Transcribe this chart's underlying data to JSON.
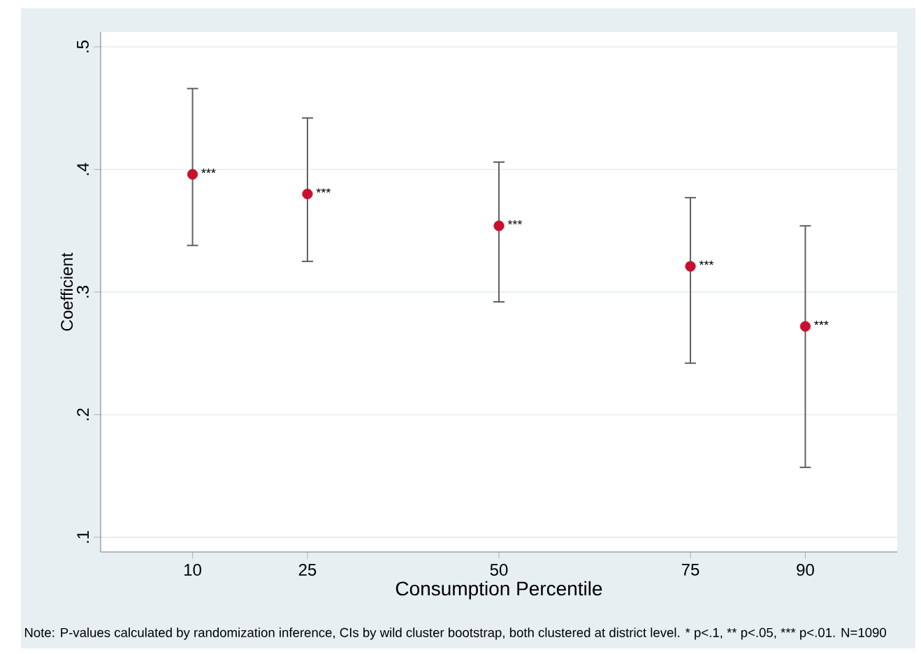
{
  "chart_data": {
    "type": "scatter",
    "xlabel": "Consumption Percentile",
    "ylabel": "Coefficient",
    "x": [
      10,
      25,
      50,
      75,
      90
    ],
    "series": [
      {
        "color": "#c8102e",
        "values": [
          0.396,
          0.38,
          0.354,
          0.321,
          0.272
        ],
        "errors": [
          [
            0.338,
            0.466
          ],
          [
            0.325,
            0.442
          ],
          [
            0.292,
            0.406
          ],
          [
            0.242,
            0.377
          ],
          [
            0.157,
            0.354
          ]
        ]
      }
    ],
    "xlim": [
      -2,
      102
    ],
    "ylim": [
      0.088,
      0.512
    ],
    "xticks": [
      10,
      25,
      50,
      75,
      90
    ],
    "yticks": [
      {
        "value": 0.1,
        "label": ".1"
      },
      {
        "value": 0.2,
        "label": ".2"
      },
      {
        "value": 0.3,
        "label": ".3"
      },
      {
        "value": 0.4,
        "label": ".4"
      },
      {
        "value": 0.5,
        "label": ".5"
      }
    ],
    "grid": "y",
    "marker": "circle",
    "annotations": [
      {
        "text": "***",
        "x": 10,
        "y": 0.396
      },
      {
        "text": "***",
        "x": 25,
        "y": 0.38
      },
      {
        "text": "***",
        "x": 50,
        "y": 0.354
      },
      {
        "text": "***",
        "x": 75,
        "y": 0.321
      },
      {
        "text": "***",
        "x": 90,
        "y": 0.272
      },
      "Note: P-values calculated by randomization inference, CIs by wild cluster bootstrap, both clustered at district level. * p<.1, ** p<.05, *** p<.01. N=1090"
    ]
  }
}
